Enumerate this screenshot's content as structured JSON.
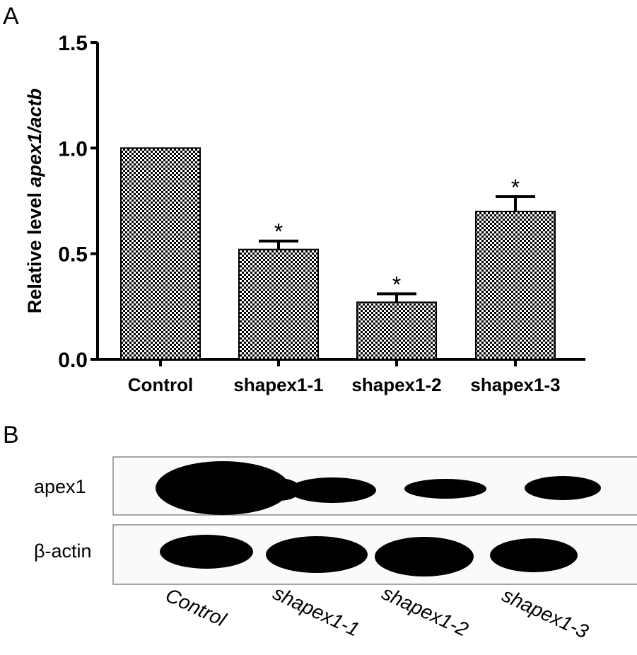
{
  "panels": {
    "a_label": "A",
    "b_label": "B"
  },
  "chart_data": {
    "type": "bar",
    "categories": [
      "Control",
      "shapex1-1",
      "shapex1-2",
      "shapex1-3"
    ],
    "values": [
      1.0,
      0.52,
      0.27,
      0.7
    ],
    "errors": [
      0,
      0.04,
      0.04,
      0.07
    ],
    "significance": [
      "",
      "*",
      "*",
      "*"
    ],
    "ylabel_plain": "Relative level ",
    "ylabel_italic": "apex1/actb",
    "yticks": [
      "0.0",
      "0.5",
      "1.0",
      "1.5"
    ],
    "ytick_values": [
      0,
      0.5,
      1.0,
      1.5
    ],
    "ylim": [
      0,
      1.5
    ],
    "bar_fill": "checkerboard black/white",
    "grid": false
  },
  "blot": {
    "row_labels": [
      "apex1",
      "β-actin"
    ],
    "lane_labels": [
      "Control",
      "shapex1-1",
      "shapex1-2",
      "shapex1-3"
    ]
  },
  "colors": {
    "ink": "#000000",
    "background": "#ffffff",
    "blot_frame": "#888888"
  }
}
